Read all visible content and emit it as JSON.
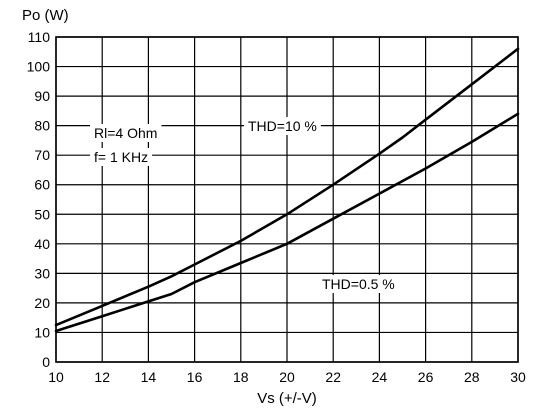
{
  "chart_data": {
    "type": "line",
    "ylabel": "Po (W)",
    "xlabel": "Vs (+/-V)",
    "xlim": [
      10,
      30
    ],
    "ylim": [
      0,
      110
    ],
    "x_ticks": [
      10,
      12,
      14,
      16,
      18,
      20,
      22,
      24,
      26,
      28,
      30
    ],
    "y_ticks": [
      0,
      10,
      20,
      30,
      40,
      50,
      60,
      70,
      80,
      90,
      100,
      110
    ],
    "grid": true,
    "annotations": [
      {
        "id": "rl",
        "text": "Rl=4 Ohm"
      },
      {
        "id": "f",
        "text": "f= 1 KHz"
      }
    ],
    "series": [
      {
        "name": "THD=10 %",
        "x": [
          10,
          12,
          14,
          15,
          16,
          18,
          20,
          22,
          24,
          25,
          26,
          28,
          30
        ],
        "y": [
          12.5,
          19,
          25.5,
          29,
          33,
          41,
          50,
          60,
          70.5,
          76,
          82,
          94,
          106
        ]
      },
      {
        "name": "THD=0.5 %",
        "x": [
          10,
          12,
          14,
          15,
          16,
          18,
          20,
          22,
          24,
          26,
          28,
          30
        ],
        "y": [
          10.5,
          15.5,
          20.5,
          23,
          27,
          33.5,
          40,
          48.5,
          57,
          65.5,
          74.5,
          84
        ]
      }
    ]
  }
}
